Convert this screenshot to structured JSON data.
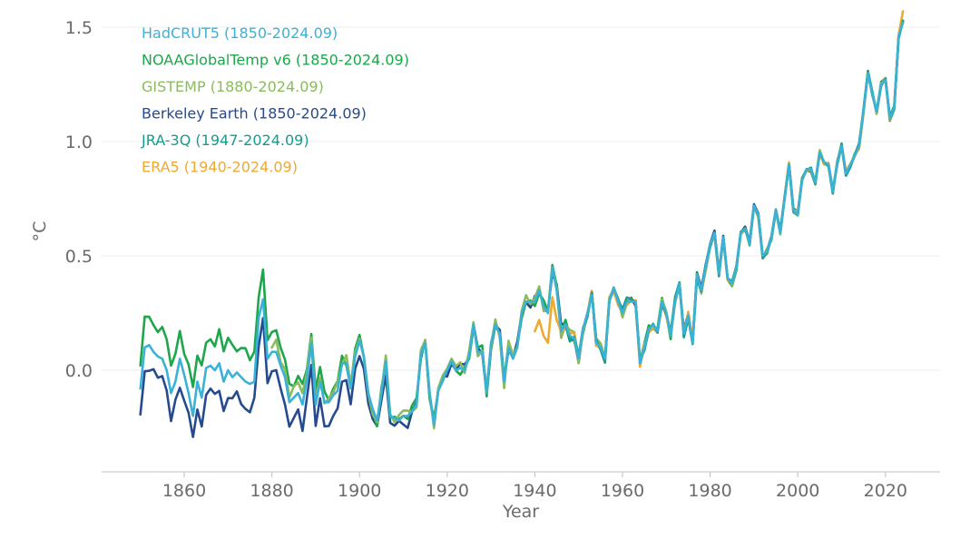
{
  "chart_data": {
    "type": "line",
    "title": "",
    "xlabel": "Year",
    "ylabel": "°C",
    "xlim": [
      1838,
      2030
    ],
    "ylim": [
      -0.45,
      1.55
    ],
    "x_ticks": [
      1860,
      1880,
      1900,
      1920,
      1940,
      1960,
      1980,
      2000,
      2020
    ],
    "x_tick_labels": [
      "1860",
      "1880",
      "1900",
      "1920",
      "1940",
      "1960",
      "1980",
      "2000",
      "2020"
    ],
    "y_ticks": [
      0.0,
      0.5,
      1.0,
      1.5
    ],
    "y_tick_labels": [
      "0.0",
      "0.5",
      "1.0",
      "1.5"
    ],
    "grid": "horizontal",
    "legend_position": "top-left",
    "base_series": {
      "start_year": 1850,
      "values": [
        -0.08,
        0.1,
        0.11,
        0.08,
        0.06,
        0.05,
        0.0,
        -0.1,
        -0.05,
        0.05,
        -0.02,
        -0.1,
        -0.2,
        -0.05,
        -0.12,
        0.01,
        0.02,
        0.0,
        0.03,
        -0.05,
        0.0,
        -0.03,
        -0.01,
        -0.03,
        -0.05,
        -0.06,
        -0.05,
        0.23,
        0.31,
        0.05,
        0.08,
        0.08,
        0.02,
        -0.03,
        -0.14,
        -0.12,
        -0.1,
        -0.15,
        -0.04,
        0.12,
        -0.15,
        -0.05,
        -0.14,
        -0.14,
        -0.11,
        -0.09,
        0.03,
        0.03,
        -0.08,
        0.06,
        0.13,
        0.06,
        -0.1,
        -0.17,
        -0.22,
        -0.1,
        0.04,
        -0.2,
        -0.21,
        -0.22,
        -0.2,
        -0.2,
        -0.18,
        -0.15,
        0.07,
        0.12,
        -0.1,
        -0.24,
        -0.09,
        -0.04,
        0.0,
        0.04,
        0.0,
        0.01,
        0.0,
        0.06,
        0.2,
        0.08,
        0.08,
        -0.1,
        0.12,
        0.2,
        0.16,
        -0.05,
        0.1,
        0.05,
        0.1,
        0.25,
        0.3,
        0.3,
        0.3,
        0.35,
        0.28,
        0.25,
        0.45,
        0.35,
        0.17,
        0.2,
        0.15,
        0.14,
        0.05,
        0.18,
        0.25,
        0.33,
        0.12,
        0.1,
        0.05,
        0.3,
        0.36,
        0.3,
        0.25,
        0.3,
        0.3,
        0.3,
        0.03,
        0.1,
        0.18,
        0.2,
        0.17,
        0.3,
        0.25,
        0.15,
        0.3,
        0.38,
        0.16,
        0.24,
        0.12,
        0.42,
        0.35,
        0.45,
        0.55,
        0.6,
        0.42,
        0.58,
        0.4,
        0.38,
        0.45,
        0.6,
        0.62,
        0.55,
        0.72,
        0.68,
        0.5,
        0.52,
        0.58,
        0.7,
        0.6,
        0.75,
        0.9,
        0.7,
        0.68,
        0.83,
        0.88,
        0.88,
        0.82,
        0.95,
        0.91,
        0.9,
        0.78,
        0.91,
        0.98,
        0.86,
        0.9,
        0.94,
        0.98,
        1.13,
        1.3,
        1.21,
        1.13,
        1.25,
        1.27,
        1.1,
        1.15,
        1.46,
        1.52
      ]
    },
    "series": [
      {
        "name": "HadCRUT5 (1850-2024.09)",
        "color": "#3ab2d8",
        "start_year": 1850,
        "offsets": {
          "1850-1900": 0.0
        }
      },
      {
        "name": "NOAAGlobalTemp v6 (1850-2024.09)",
        "color": "#1ea64b",
        "start_year": 1850,
        "early_offset": 0.12,
        "early_until": 1900
      },
      {
        "name": "GISTEMP (1880-2024.09)",
        "color": "#8bbb5c",
        "start_year": 1880,
        "early_offset": 0.06,
        "early_until": 1900
      },
      {
        "name": "Berkeley Earth (1850-2024.09)",
        "color": "#254b8e",
        "start_year": 1850,
        "early_offset": -0.1,
        "early_until": 1920
      },
      {
        "name": "JRA-3Q (1947-2024.09)",
        "color": "#189b8c",
        "start_year": 1947,
        "early_offset": 0.0,
        "early_until": 1947
      },
      {
        "name": "ERA5 (1940-2024.09)",
        "color": "#f0a92f",
        "start_year": 1940,
        "early_offset": -0.12,
        "early_until": 1946
      }
    ]
  }
}
